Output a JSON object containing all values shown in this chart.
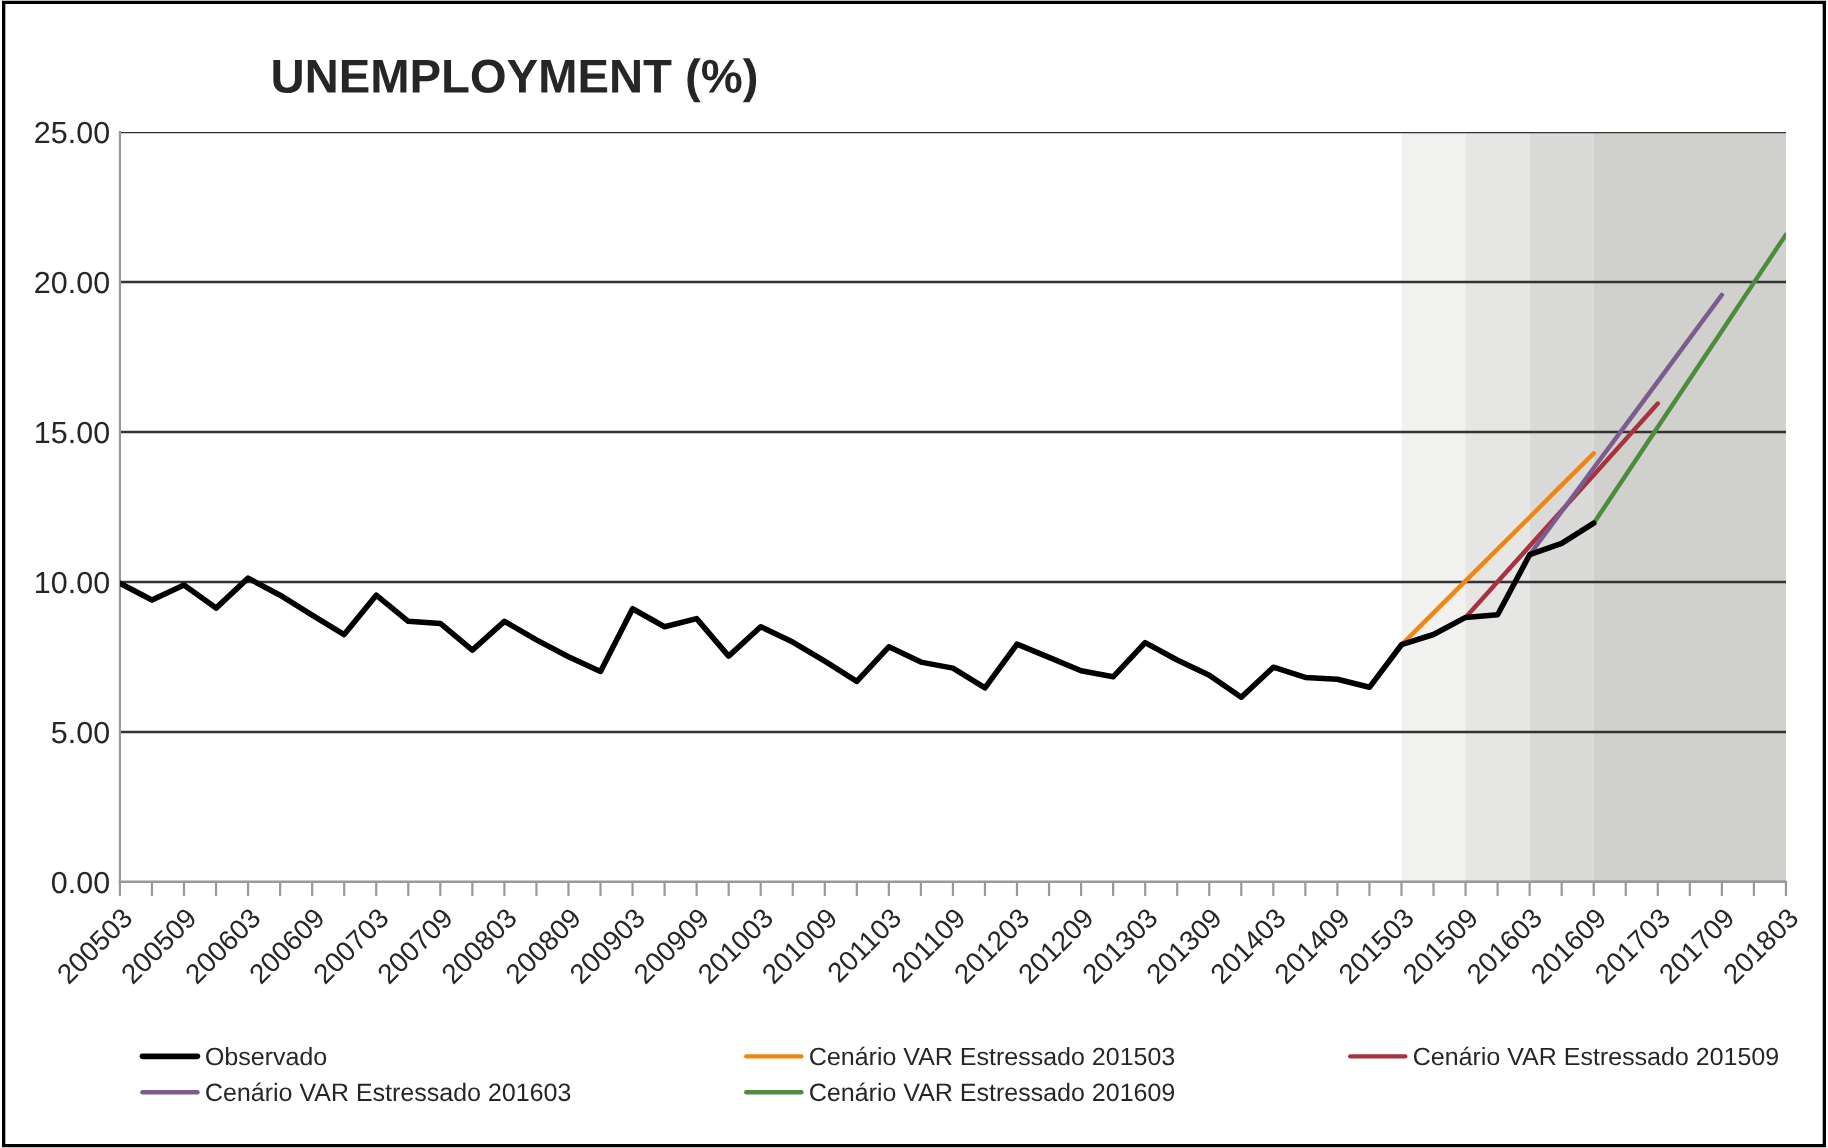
{
  "chart_data": {
    "type": "line",
    "title": "UNEMPLOYMENT (%)",
    "categories": [
      "200503",
      null,
      "200509",
      null,
      "200603",
      null,
      "200609",
      null,
      "200703",
      null,
      "200709",
      null,
      "200803",
      null,
      "200809",
      null,
      "200903",
      null,
      "200909",
      null,
      "201003",
      null,
      "201009",
      null,
      "201103",
      null,
      "201109",
      null,
      "201203",
      null,
      "201209",
      null,
      "201303",
      null,
      "201309",
      null,
      "201403",
      null,
      "201409",
      null,
      "201503",
      null,
      "201509",
      null,
      "201603",
      null,
      "201609",
      null,
      "201703",
      null,
      "201709",
      null,
      "201803"
    ],
    "series": [
      {
        "name": "Observado",
        "color": "#000000",
        "values": [
          9.96,
          9.4,
          9.9,
          9.13,
          10.13,
          9.56,
          8.9,
          8.25,
          9.56,
          8.69,
          8.62,
          7.73,
          8.69,
          8.07,
          7.51,
          7.02,
          9.11,
          8.51,
          8.78,
          7.53,
          8.51,
          8.0,
          7.36,
          6.69,
          7.84,
          7.33,
          7.13,
          6.47,
          7.93,
          7.49,
          7.04,
          6.84,
          7.98,
          7.4,
          6.89,
          6.16,
          7.16,
          6.82,
          6.76,
          6.49,
          7.91,
          8.25,
          8.82,
          8.91,
          10.91,
          11.29,
          11.96,
          null,
          null,
          null,
          null,
          null,
          null
        ]
      },
      {
        "name": "Cenário VAR Estressado 201503",
        "color": "#f0850f",
        "values": [
          null,
          null,
          null,
          null,
          null,
          null,
          null,
          null,
          null,
          null,
          null,
          null,
          null,
          null,
          null,
          null,
          null,
          null,
          null,
          null,
          null,
          null,
          null,
          null,
          null,
          null,
          null,
          null,
          null,
          null,
          null,
          null,
          null,
          null,
          null,
          null,
          null,
          null,
          null,
          null,
          7.91,
          8.97,
          10.04,
          11.1,
          12.16,
          13.23,
          14.29,
          null,
          null,
          null,
          null,
          null,
          null
        ]
      },
      {
        "name": "Cenário VAR Estressado 201509",
        "color": "#a8323e",
        "values": [
          null,
          null,
          null,
          null,
          null,
          null,
          null,
          null,
          null,
          null,
          null,
          null,
          null,
          null,
          null,
          null,
          null,
          null,
          null,
          null,
          null,
          null,
          null,
          null,
          null,
          null,
          null,
          null,
          null,
          null,
          null,
          null,
          null,
          null,
          null,
          null,
          null,
          null,
          null,
          null,
          null,
          null,
          8.82,
          10.01,
          11.2,
          12.38,
          13.57,
          14.76,
          15.95,
          null,
          null,
          null,
          null
        ]
      },
      {
        "name": "Cenário VAR Estressado 201603",
        "color": "#7b5c8e",
        "values": [
          null,
          null,
          null,
          null,
          null,
          null,
          null,
          null,
          null,
          null,
          null,
          null,
          null,
          null,
          null,
          null,
          null,
          null,
          null,
          null,
          null,
          null,
          null,
          null,
          null,
          null,
          null,
          null,
          null,
          null,
          null,
          null,
          null,
          null,
          null,
          null,
          null,
          null,
          null,
          null,
          null,
          null,
          null,
          null,
          10.91,
          12.35,
          13.8,
          15.24,
          16.68,
          18.13,
          19.57,
          null,
          null
        ]
      },
      {
        "name": "Cenário VAR Estressado 201609",
        "color": "#4e8b3e",
        "values": [
          null,
          null,
          null,
          null,
          null,
          null,
          null,
          null,
          null,
          null,
          null,
          null,
          null,
          null,
          null,
          null,
          null,
          null,
          null,
          null,
          null,
          null,
          null,
          null,
          null,
          null,
          null,
          null,
          null,
          null,
          null,
          null,
          null,
          null,
          null,
          null,
          null,
          null,
          null,
          null,
          null,
          null,
          null,
          null,
          null,
          null,
          11.96,
          13.56,
          15.17,
          16.77,
          18.37,
          19.98,
          21.58
        ]
      }
    ],
    "bands": [
      {
        "axis": "x",
        "from": "201503",
        "to": "201509",
        "color": "#f1f1ef"
      },
      {
        "axis": "x",
        "from": "201509",
        "to": "201603",
        "color": "#e6e6e4"
      },
      {
        "axis": "x",
        "from": "201603",
        "to": "201609",
        "color": "#dadad8"
      },
      {
        "axis": "x",
        "from": "201609",
        "to": "201803",
        "color": "#d0d0cc"
      }
    ],
    "ylim": [
      0,
      25
    ],
    "yticks": [
      {
        "value": 0,
        "label": "0.00"
      },
      {
        "value": 5,
        "label": "5.00"
      },
      {
        "value": 10,
        "label": "10.00"
      },
      {
        "value": 15,
        "label": "15.00"
      },
      {
        "value": 20,
        "label": "20.00"
      },
      {
        "value": 25,
        "label": "25.00"
      }
    ],
    "grid": "y",
    "legend": "bottom",
    "line_style": "solid",
    "marker": "none"
  }
}
